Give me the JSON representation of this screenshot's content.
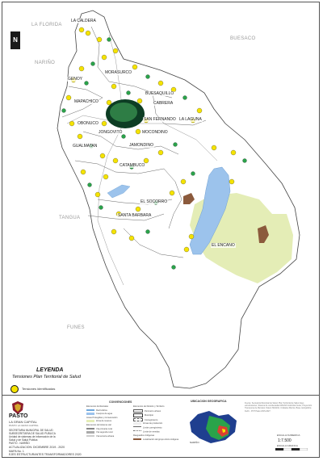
{
  "map": {
    "neighbors": {
      "la_florida": "LA FLORIDA",
      "buesaco": "BUESACO",
      "narino": "NARIÑO",
      "tangua": "TANGUA",
      "funes": "FUNES"
    },
    "localities": {
      "la_caldera": "LA CALDERA",
      "genoy": "GENOY",
      "morasurco": "MORASURCO",
      "buesaquillo": "BUESAQUILLO",
      "mapachico": "MAPACHICO",
      "cabrera": "CABRERA",
      "obonuco": "OBONUCO",
      "san_fernando": "SAN FERNANDO",
      "la_laguna": "LA LAGUNA",
      "jongovito": "JONGOVITO",
      "mocondino": "MOCONDINO",
      "gualmatan": "GUALMATAN",
      "jamondino": "JAMONDINO",
      "catambuco": "CATAMBUCO",
      "el_socorro": "EL SOCORRO",
      "santa_barbara": "SANTA BARBARA",
      "el_encano": "EL ENCANO"
    },
    "north_label": "N",
    "colors": {
      "territory": "#ffffff",
      "outside": "#ffffff",
      "lake": "#9cc3ec",
      "reserve": "#e4edb6",
      "indigenous": "#8b5a3c",
      "point_yellow": "#f5e300",
      "point_green": "#2aa34a",
      "urban_dark": "#0d3d24"
    }
  },
  "legend": {
    "title": "LEYENDA",
    "subtitle": "Tensiones Plan Territorial de Salud",
    "symbol_label": "Tensiones identificadas"
  },
  "footer": {
    "org": {
      "name": "PASTO",
      "slogan": "LA GRAN CAPITAL",
      "motto": "PASTO LA GRAN CAPITAL",
      "secretaria": [
        "SECRETARIA MUNICIPAL DE SALUD",
        "SUBSECRETARIA DE SALUD PUBLICA",
        "Unidad de sistemas de información de la",
        "Salud y de Salud Pública",
        "PASTO - NARIÑO"
      ],
      "map_ref": [
        "ACTUALIZACION: DICIEMBRE 2019 - 2020",
        "MAPA No. 1",
        "EJES ESTRUCTURANTES TRANSFORMADORES 2020"
      ]
    },
    "conventions": {
      "title": "CONVENCIONES",
      "col1": [
        "Elementos Ambientales",
        "Red Hídrica",
        "Cuerpos de agua",
        "Areas Protegidas y Conservación",
        "Zona de reserva",
        "Elementos del sistema vial",
        "Vía primaria rural",
        "Vía segunda rural",
        "Vía tercería urbana"
      ],
      "col2": [
        "Elementos de División y Territorio",
        "Perímetro urbano",
        "Municipio",
        "Corregimiento",
        "Zonas de producción",
        "Límite corregimiento",
        "Límite de veredas",
        "Resguardos Indígenas",
        "Localización del grupo étnico indígena"
      ]
    },
    "location": {
      "title": "UBICACION GEOGRAFICA",
      "inset_label": "NARIÑO"
    },
    "notes": "Fuente: Secretaría Municipal de Salud, Plan Territorial de Salud, Ejes estructurantes, Sistema de coordenadas MAGNA Colombia Oeste, Proyección Transversa de Mercator, Datum MAGNA, Unidades Metros, Base cartográfica IGAC - POT Pasto 2015-2027.",
    "scale": {
      "title": "ESCALA NUMERICA",
      "value": "1:7.500",
      "graphic": "ESCALA GRAFICA"
    }
  }
}
